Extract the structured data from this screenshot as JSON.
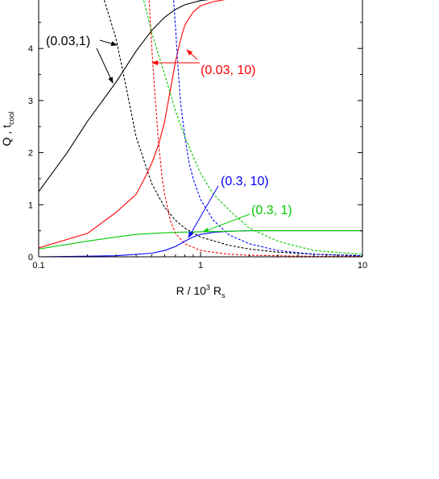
{
  "chart_data": {
    "type": "line",
    "xlabel_parts": {
      "main": "R / 10",
      "sup": "3",
      "mid": " R",
      "sub": "s"
    },
    "ylabel_parts": {
      "main": "Q , t",
      "sub": "cool"
    },
    "x_scale": "log",
    "xlim": [
      0.1,
      10
    ],
    "ylim": [
      0,
      5
    ],
    "x_ticks": [
      0.1,
      1,
      10
    ],
    "x_tick_labels": [
      "0.1",
      "1",
      "10"
    ],
    "y_ticks": [
      0,
      1,
      2,
      3,
      4
    ],
    "y_tick_labels": [
      "0",
      "1",
      "2",
      "3",
      "4"
    ],
    "grid": false,
    "series": [
      {
        "name": "(0.03,1)",
        "kind": "Q",
        "color": "#000000",
        "dashed": false,
        "x": [
          0.1,
          0.15,
          0.2,
          0.3,
          0.4,
          0.5,
          0.6,
          0.7,
          0.8,
          1.0,
          1.2,
          1.5,
          2,
          3
        ],
        "y": [
          1.25,
          2.0,
          2.6,
          3.35,
          3.95,
          4.35,
          4.6,
          4.75,
          4.84,
          4.92,
          4.95,
          4.97,
          4.98,
          5.0
        ]
      },
      {
        "name": "(0.03,1)",
        "kind": "t_cool",
        "color": "#000000",
        "dashed": true,
        "x": [
          0.25,
          0.28,
          0.3,
          0.35,
          0.4,
          0.5,
          0.6,
          0.7,
          0.8,
          1.0,
          1.5,
          2,
          3,
          5,
          10
        ],
        "y": [
          5.0,
          4.5,
          4.2,
          3.2,
          2.3,
          1.4,
          0.95,
          0.7,
          0.55,
          0.38,
          0.22,
          0.15,
          0.09,
          0.05,
          0.02
        ]
      },
      {
        "name": "(0.03, 10)",
        "kind": "Q",
        "color": "#ff0000",
        "dashed": false,
        "x": [
          0.1,
          0.2,
          0.3,
          0.4,
          0.45,
          0.5,
          0.55,
          0.6,
          0.65,
          0.7,
          0.75,
          0.8,
          0.9,
          1.0,
          1.2,
          1.5,
          2,
          3
        ],
        "y": [
          0.17,
          0.45,
          0.85,
          1.2,
          1.5,
          1.8,
          2.15,
          2.6,
          3.2,
          3.75,
          4.15,
          4.45,
          4.7,
          4.82,
          4.9,
          4.95,
          4.97,
          5.0
        ]
      },
      {
        "name": "(0.03, 10)",
        "kind": "t_cool",
        "color": "#ff0000",
        "dashed": true,
        "x": [
          0.48,
          0.5,
          0.52,
          0.55,
          0.58,
          0.6,
          0.65,
          0.7,
          0.8,
          1.0,
          1.5,
          2,
          3,
          5,
          10
        ],
        "y": [
          5.0,
          4.0,
          3.2,
          2.2,
          1.5,
          1.2,
          0.7,
          0.45,
          0.25,
          0.12,
          0.05,
          0.03,
          0.02,
          0.01,
          0.01
        ]
      },
      {
        "name": "(0.3, 10)",
        "kind": "Q",
        "color": "#0000ff",
        "dashed": false,
        "x": [
          0.1,
          0.3,
          0.5,
          0.6,
          0.7,
          0.8,
          0.9,
          1.0,
          1.2,
          1.5,
          2,
          3,
          5,
          10
        ],
        "y": [
          0.0,
          0.02,
          0.07,
          0.12,
          0.2,
          0.3,
          0.38,
          0.43,
          0.47,
          0.49,
          0.5,
          0.5,
          0.5,
          0.5
        ]
      },
      {
        "name": "(0.3, 10)",
        "kind": "t_cool",
        "color": "#0000ff",
        "dashed": true,
        "x": [
          0.68,
          0.7,
          0.72,
          0.75,
          0.8,
          0.85,
          0.9,
          1.0,
          1.2,
          1.5,
          2,
          3,
          5,
          10
        ],
        "y": [
          5.0,
          4.4,
          3.8,
          3.0,
          2.3,
          1.8,
          1.5,
          1.1,
          0.7,
          0.42,
          0.25,
          0.12,
          0.05,
          0.02
        ]
      },
      {
        "name": "(0.3, 1)",
        "kind": "Q",
        "color": "#00cc00",
        "dashed": false,
        "x": [
          0.1,
          0.2,
          0.3,
          0.4,
          0.5,
          0.7,
          1.0,
          1.5,
          2,
          3,
          5,
          10
        ],
        "y": [
          0.15,
          0.3,
          0.38,
          0.43,
          0.45,
          0.47,
          0.48,
          0.49,
          0.5,
          0.5,
          0.5,
          0.5
        ]
      },
      {
        "name": "(0.3, 1)",
        "kind": "t_cool",
        "color": "#00cc00",
        "dashed": true,
        "x": [
          0.44,
          0.5,
          0.6,
          0.7,
          0.8,
          1.0,
          1.2,
          1.5,
          2,
          3,
          5,
          10
        ],
        "y": [
          5.0,
          4.3,
          3.5,
          2.8,
          2.3,
          1.6,
          1.2,
          0.9,
          0.55,
          0.3,
          0.12,
          0.05
        ]
      }
    ],
    "annotations": [
      {
        "text": "(0.03,1)",
        "color": "#000000"
      },
      {
        "text": "(0.03, 10)",
        "color": "#ff0000"
      },
      {
        "text": "(0.3, 10)",
        "color": "#0000ff"
      },
      {
        "text": "(0.3, 1)",
        "color": "#00cc00"
      }
    ]
  }
}
